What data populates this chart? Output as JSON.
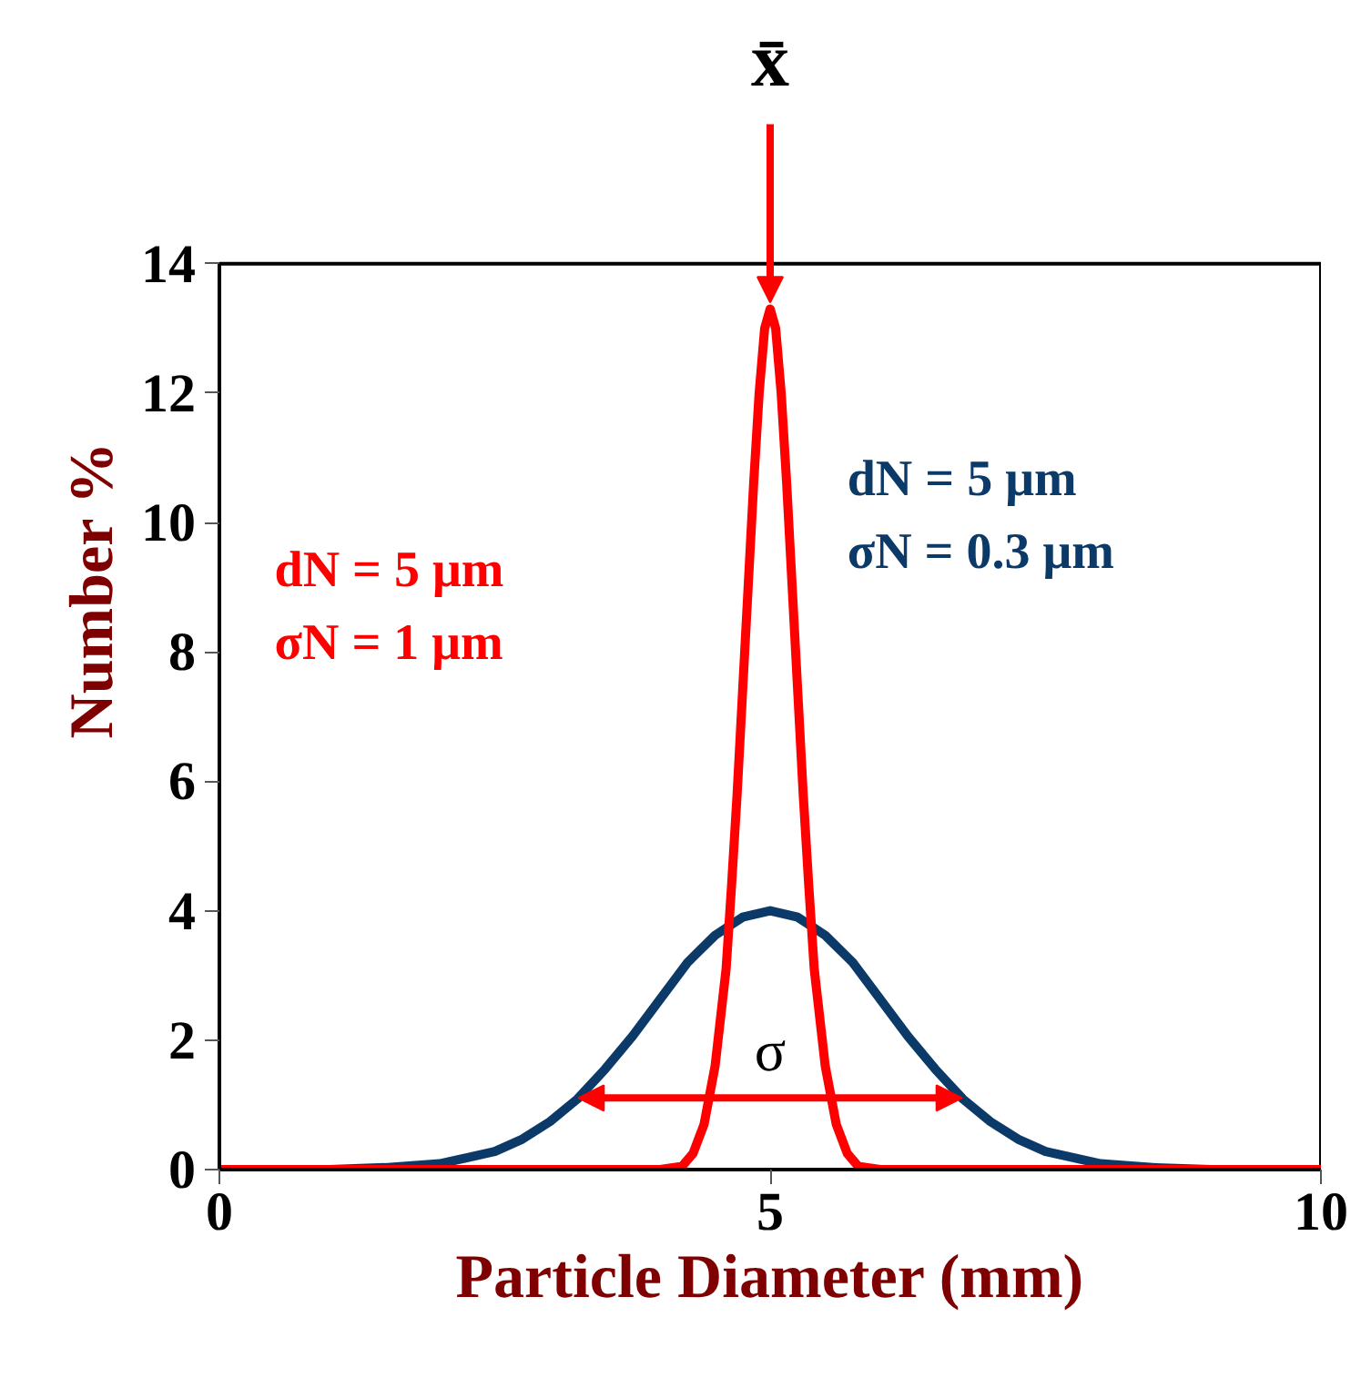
{
  "chart_data": {
    "type": "line",
    "xlabel": "Particle Diameter (mm)",
    "ylabel": "Number %",
    "xlim": [
      0,
      10
    ],
    "ylim": [
      0,
      14
    ],
    "xticks": [
      0,
      5,
      10
    ],
    "yticks": [
      0,
      2,
      4,
      6,
      8,
      10,
      12,
      14
    ],
    "marker": "none",
    "line_style": "solid",
    "series": [
      {
        "color": "#0b3a68",
        "x": [
          0,
          1,
          1.5,
          2,
          2.5,
          2.75,
          3,
          3.25,
          3.5,
          3.75,
          4,
          4.25,
          4.5,
          4.75,
          5,
          5.25,
          5.5,
          5.75,
          6,
          6.25,
          6.5,
          6.75,
          7,
          7.25,
          7.5,
          8,
          8.5,
          9,
          10
        ],
        "values": [
          0,
          0,
          0.03,
          0.09,
          0.28,
          0.47,
          0.74,
          1.09,
          1.55,
          2.06,
          2.63,
          3.2,
          3.62,
          3.9,
          4.0,
          3.9,
          3.62,
          3.2,
          2.63,
          2.06,
          1.55,
          1.09,
          0.74,
          0.47,
          0.28,
          0.09,
          0.03,
          0,
          0
        ]
      },
      {
        "color": "#ff0000",
        "x": [
          0,
          3.8,
          4.0,
          4.2,
          4.3,
          4.4,
          4.5,
          4.6,
          4.65,
          4.7,
          4.75,
          4.8,
          4.85,
          4.9,
          4.95,
          5.0,
          5.05,
          5.1,
          5.15,
          5.2,
          5.25,
          5.3,
          5.35,
          5.4,
          5.5,
          5.6,
          5.7,
          5.8,
          6.0,
          6.2,
          10
        ],
        "values": [
          0,
          0,
          0,
          0.05,
          0.25,
          0.7,
          1.6,
          3.1,
          4.4,
          5.8,
          7.4,
          9.0,
          10.6,
          12.0,
          13.0,
          13.3,
          13.0,
          12.0,
          10.6,
          9.0,
          7.4,
          5.8,
          4.4,
          3.1,
          1.6,
          0.7,
          0.25,
          0.05,
          0,
          0,
          0
        ]
      }
    ],
    "annotations": [
      {
        "text": "x̄",
        "x": 5,
        "y": 13.3
      },
      "dN = 5 μm",
      "σN = 1 μm",
      "dN = 5 μm",
      "σN = 0.3 μm",
      "σ"
    ]
  }
}
